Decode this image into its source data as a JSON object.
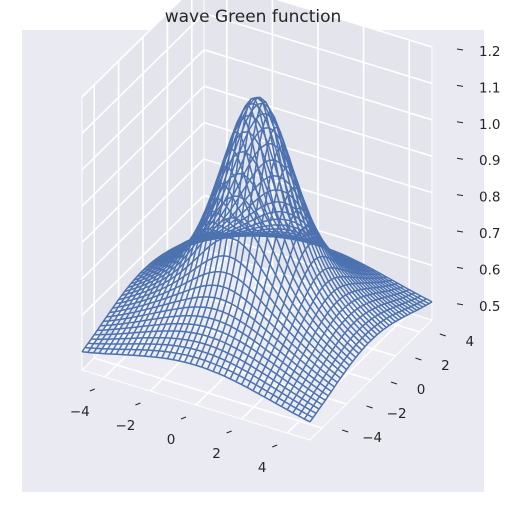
{
  "chart_data": {
    "type": "surface-wireframe",
    "title": "wave Green function",
    "xlabel": "",
    "ylabel": "",
    "zlabel": "",
    "xlim": [
      -5,
      5
    ],
    "ylim": [
      -5,
      5
    ],
    "zlim": [
      0.45,
      1.2
    ],
    "x_ticks": [
      "−4",
      "−2",
      "0",
      "2",
      "4"
    ],
    "y_ticks": [
      "−4",
      "−2",
      "0",
      "2",
      "4"
    ],
    "z_ticks": [
      "0.5",
      "0.6",
      "0.7",
      "0.8",
      "0.9",
      "1.0",
      "1.1",
      "1.2"
    ],
    "grid": true,
    "background": "#eaeaf2",
    "line_color": "#4c72b0",
    "surface": {
      "peak": {
        "x": 0,
        "y": 0,
        "z": 1.13
      },
      "corner_values": [
        {
          "x": -5,
          "y": -5,
          "z": 0.5
        },
        {
          "x": 5,
          "y": -5,
          "z": 0.5
        },
        {
          "x": -5,
          "y": 5,
          "z": 0.5
        },
        {
          "x": 5,
          "y": 5,
          "z": 0.5
        }
      ]
    }
  }
}
